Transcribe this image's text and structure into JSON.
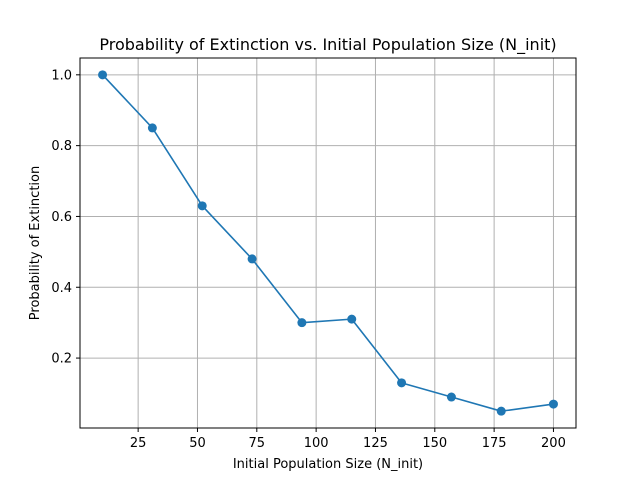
{
  "chart_data": {
    "type": "line",
    "title": "Probability of Extinction vs. Initial Population Size (N_init)",
    "xlabel": "Initial Population Size (N_init)",
    "ylabel": "Probability of Extinction",
    "x": [
      10,
      31,
      52,
      73,
      94,
      115,
      136,
      157,
      178,
      200
    ],
    "series": [
      {
        "values": [
          1.0,
          0.85,
          0.63,
          0.48,
          0.3,
          0.31,
          0.13,
          0.09,
          0.05,
          0.07
        ],
        "color": "#1f77b4",
        "marker": "circle"
      }
    ],
    "xlim": [
      0.5,
      209.5
    ],
    "ylim": [
      0.0025,
      1.0475
    ],
    "xticks": [
      25,
      50,
      75,
      100,
      125,
      150,
      175,
      200
    ],
    "yticks": [
      0.2,
      0.4,
      0.6,
      0.8,
      1.0
    ],
    "xtick_labels": [
      "25",
      "50",
      "75",
      "100",
      "125",
      "150",
      "175",
      "200"
    ],
    "ytick_labels": [
      "0.2",
      "0.4",
      "0.6",
      "0.8",
      "1.0"
    ],
    "grid": true,
    "grid_color": "#b0b0b0",
    "line_color": "#1f77b4"
  }
}
